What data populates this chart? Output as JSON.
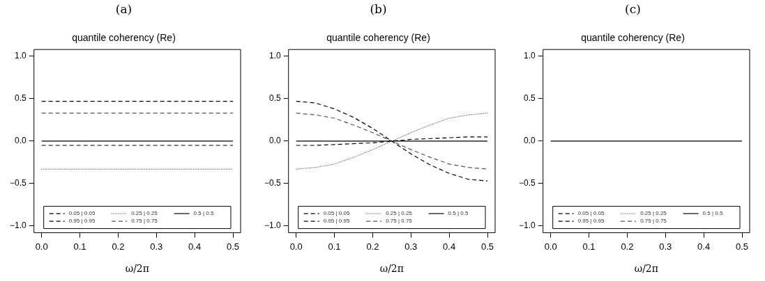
{
  "chart_data": [
    {
      "type": "line",
      "title": "(a)",
      "subtitle": "quantile coherency (Re)",
      "xlabel": "ω/2π",
      "x": [
        0,
        0.5
      ],
      "xlim": [
        -0.02,
        0.52
      ],
      "xticks": [
        {
          "value": 0,
          "label": "0.0"
        },
        {
          "value": 0.1,
          "label": "0.1"
        },
        {
          "value": 0.2,
          "label": "0.2"
        },
        {
          "value": 0.3,
          "label": "0.3"
        },
        {
          "value": 0.4,
          "label": "0.4"
        },
        {
          "value": 0.5,
          "label": "0.5"
        }
      ],
      "ylim": [
        -1.08,
        1.08
      ],
      "yticks": [
        {
          "value": -1,
          "label": "−1.0"
        },
        {
          "value": -0.5,
          "label": "−0.5"
        },
        {
          "value": 0,
          "label": "0.0"
        },
        {
          "value": 0.5,
          "label": "0.5"
        },
        {
          "value": 1,
          "label": "1.0"
        }
      ],
      "legend": "bottom",
      "grid": false,
      "marker": "none",
      "series": [
        {
          "name": "0.05 | 0.05",
          "color": "#000000",
          "line_style": "dashed",
          "values": [
            -0.05,
            -0.05
          ]
        },
        {
          "name": "0.95 | 0.95",
          "color": "#000000",
          "line_style": "dashed",
          "values": [
            0.47,
            0.47
          ]
        },
        {
          "name": "0.25 | 0.25",
          "color": "#555555",
          "line_style": "dotted",
          "values": [
            -0.33,
            -0.33
          ]
        },
        {
          "name": "0.75 | 0.75",
          "color": "#555555",
          "line_style": "dashed",
          "values": [
            0.33,
            0.33
          ]
        },
        {
          "name": "0.5 | 0.5",
          "color": "#000000",
          "line_style": "solid",
          "values": [
            0,
            0
          ]
        }
      ]
    },
    {
      "type": "line",
      "title": "(b)",
      "subtitle": "quantile coherency (Re)",
      "xlabel": "ω/2π",
      "x": [
        0,
        0.05,
        0.1,
        0.15,
        0.2,
        0.25,
        0.3,
        0.35,
        0.4,
        0.45,
        0.5
      ],
      "xlim": [
        -0.02,
        0.52
      ],
      "xticks": [
        {
          "value": 0,
          "label": "0.0"
        },
        {
          "value": 0.1,
          "label": "0.1"
        },
        {
          "value": 0.2,
          "label": "0.2"
        },
        {
          "value": 0.3,
          "label": "0.3"
        },
        {
          "value": 0.4,
          "label": "0.4"
        },
        {
          "value": 0.5,
          "label": "0.5"
        }
      ],
      "ylim": [
        -1.08,
        1.08
      ],
      "yticks": [
        {
          "value": -1,
          "label": "−1.0"
        },
        {
          "value": -0.5,
          "label": "−0.5"
        },
        {
          "value": 0,
          "label": "0.0"
        },
        {
          "value": 0.5,
          "label": "0.5"
        },
        {
          "value": 1,
          "label": "1.0"
        }
      ],
      "legend": "bottom",
      "grid": false,
      "marker": "none",
      "series": [
        {
          "name": "0.05 | 0.05",
          "color": "#000000",
          "line_style": "dashed",
          "values": [
            -0.05,
            -0.05,
            -0.04,
            -0.03,
            -0.02,
            0,
            0.02,
            0.03,
            0.04,
            0.05,
            0.05
          ]
        },
        {
          "name": "0.95 | 0.95",
          "color": "#000000",
          "line_style": "dashed",
          "values": [
            0.47,
            0.45,
            0.38,
            0.28,
            0.15,
            0,
            -0.15,
            -0.28,
            -0.38,
            -0.45,
            -0.47
          ]
        },
        {
          "name": "0.25 | 0.25",
          "color": "#555555",
          "line_style": "dotted",
          "values": [
            -0.33,
            -0.31,
            -0.27,
            -0.19,
            -0.1,
            0,
            0.1,
            0.19,
            0.27,
            0.31,
            0.33
          ]
        },
        {
          "name": "0.75 | 0.75",
          "color": "#555555",
          "line_style": "dashed",
          "values": [
            0.33,
            0.31,
            0.27,
            0.19,
            0.1,
            0,
            -0.1,
            -0.19,
            -0.27,
            -0.31,
            -0.33
          ]
        },
        {
          "name": "0.5 | 0.5",
          "color": "#000000",
          "line_style": "solid",
          "values": [
            0,
            0,
            0,
            0,
            0,
            0,
            0,
            0,
            0,
            0,
            0
          ]
        }
      ]
    },
    {
      "type": "line",
      "title": "(c)",
      "subtitle": "quantile coherency (Re)",
      "xlabel": "ω/2π",
      "x": [
        0,
        0.5
      ],
      "xlim": [
        -0.02,
        0.52
      ],
      "xticks": [
        {
          "value": 0,
          "label": "0.0"
        },
        {
          "value": 0.1,
          "label": "0.1"
        },
        {
          "value": 0.2,
          "label": "0.2"
        },
        {
          "value": 0.3,
          "label": "0.3"
        },
        {
          "value": 0.4,
          "label": "0.4"
        },
        {
          "value": 0.5,
          "label": "0.5"
        }
      ],
      "ylim": [
        -1.08,
        1.08
      ],
      "yticks": [
        {
          "value": -1,
          "label": "−1.0"
        },
        {
          "value": -0.5,
          "label": "−0.5"
        },
        {
          "value": 0,
          "label": "0.0"
        },
        {
          "value": 0.5,
          "label": "0.5"
        },
        {
          "value": 1,
          "label": "1.0"
        }
      ],
      "legend": "bottom",
      "grid": false,
      "marker": "none",
      "series": [
        {
          "name": "0.05 | 0.05",
          "color": "#000000",
          "line_style": "dashed",
          "values": [
            null,
            null
          ]
        },
        {
          "name": "0.95 | 0.95",
          "color": "#000000",
          "line_style": "dashed",
          "values": [
            null,
            null
          ]
        },
        {
          "name": "0.25 | 0.25",
          "color": "#555555",
          "line_style": "dotted",
          "values": [
            null,
            null
          ]
        },
        {
          "name": "0.75 | 0.75",
          "color": "#555555",
          "line_style": "dashed",
          "values": [
            null,
            null
          ]
        },
        {
          "name": "0.5 | 0.5",
          "color": "#000000",
          "line_style": "solid",
          "values": [
            0,
            0
          ]
        }
      ]
    }
  ]
}
